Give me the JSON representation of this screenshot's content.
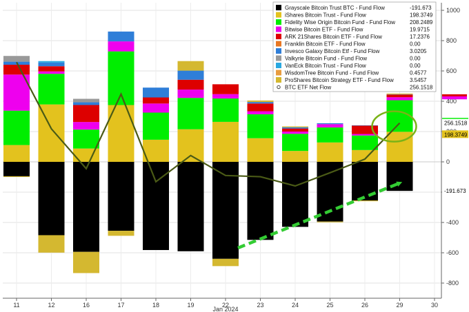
{
  "chart_data": {
    "type": "bar",
    "stacked": true,
    "title": "",
    "xlabel": "Jan 2024",
    "ylabel": "",
    "ylim": [
      -900,
      1050
    ],
    "yticks": [
      -800,
      -600,
      -400,
      -200,
      0,
      200,
      400,
      600,
      800,
      1000
    ],
    "x_tick_labels": [
      "11",
      "12",
      "16",
      "17",
      "18",
      "19",
      "22",
      "23",
      "24",
      "25",
      "26",
      "29",
      "30"
    ],
    "categories": [
      "11",
      "12",
      "16",
      "17",
      "18",
      "19",
      "22",
      "23",
      "24",
      "25",
      "26",
      "29"
    ],
    "series": [
      {
        "name": "Grayscale Bitcoin Trust BTC - Fund Flow",
        "last_value": "-191.673",
        "color": "#000000",
        "values": [
          -95,
          -484,
          -594,
          -455,
          -582,
          -590,
          -640,
          -515,
          -429,
          -394,
          -255,
          -191.673
        ]
      },
      {
        "name": "iShares Bitcoin Trust - Fund Flow",
        "last_value": "198.3749",
        "color": "#e3c21e",
        "values": [
          111,
          379,
          88,
          375,
          146,
          215,
          264,
          156,
          72,
          128,
          78,
          198.3749
        ]
      },
      {
        "name": "Fidelity Wise Origin Bitcoin Fund - Fund Flow",
        "last_value": "208.2489",
        "color": "#00ee00",
        "values": [
          227,
          202,
          125,
          354,
          179,
          207,
          154,
          158,
          113,
          99,
          96,
          208.2489
        ]
      },
      {
        "name": "Bitwise Bitcoin ETF - Fund Flow",
        "last_value": "19.9715",
        "color": "#ee00ee",
        "values": [
          238,
          16,
          50,
          66,
          60,
          55,
          29,
          20,
          15,
          22,
          10,
          19.9715
        ]
      },
      {
        "name": "ARK 21Shares Bitcoin ETF - Fund Flow",
        "last_value": "17.2376",
        "color": "#dd0000",
        "values": [
          65,
          34,
          112,
          0,
          40,
          65,
          65,
          51,
          20,
          0,
          55,
          17.2376
        ]
      },
      {
        "name": "Franklin Bitcoin ETF - Fund Flow",
        "last_value": "0.00",
        "color": "#e87722",
        "values": [
          0,
          0,
          0,
          0,
          0,
          0,
          0,
          0,
          0,
          0,
          0,
          0
        ]
      },
      {
        "name": "Invesco Galaxy Bitcoin Etf - Fund Flow",
        "last_value": "3.0205",
        "color": "#2f7ed8",
        "values": [
          20,
          24,
          18,
          65,
          65,
          60,
          0,
          10,
          8,
          6,
          2,
          3.0205
        ]
      },
      {
        "name": "Valkyrie Bitcoin Fund - Fund Flow",
        "last_value": "0.00",
        "color": "#999999",
        "values": [
          38,
          0,
          23,
          0,
          0,
          0,
          0,
          0,
          0,
          0,
          0,
          0
        ]
      },
      {
        "name": "VanEck Bitcoin Trust - Fund Flow",
        "last_value": "0.00",
        "color": "#2aa8e0",
        "values": [
          0,
          10,
          0,
          0,
          0,
          0,
          0,
          0,
          0,
          0,
          0,
          0
        ]
      },
      {
        "name": "WisdomTree Bitcoin Fund - Fund Flow",
        "last_value": "0.4577",
        "color": "#e89c3f",
        "values": [
          0,
          0,
          0,
          0,
          0,
          0,
          0,
          0,
          0,
          0,
          0,
          0.4577
        ]
      },
      {
        "name": "ProShares Bitcoin Strategy ETF - Fund Flow",
        "last_value": "3.5457",
        "color": "#d4b830",
        "values": [
          -5,
          -115,
          -140,
          -33,
          0,
          63,
          -48,
          10,
          6,
          -5,
          -5,
          3.5457
        ]
      }
    ],
    "line": {
      "name": "BTC ETF Net Flow",
      "last_value": "256.1518",
      "color": "#4a5a16",
      "values": [
        658,
        218,
        -45,
        447,
        -131,
        42,
        -90,
        -98,
        -159,
        -72,
        18,
        256.1518
      ]
    },
    "right_value_tags": [
      {
        "label": "208.2489",
        "value": 208.2489,
        "color": "#00ee00"
      },
      {
        "label": "256.1518",
        "value": 256.1518,
        "color": "#ffffff"
      },
      {
        "label": "198.3749",
        "value": 198.3749,
        "color": "#e3c21e"
      },
      {
        "label": "-191.673",
        "value": -191.673,
        "color": "#ffffff"
      }
    ],
    "legend_position": "top-center",
    "annotations": [
      "green ellipse around latest net flow point",
      "green dashed arrow pointing up-right toward latest Grayscale outflow"
    ]
  }
}
